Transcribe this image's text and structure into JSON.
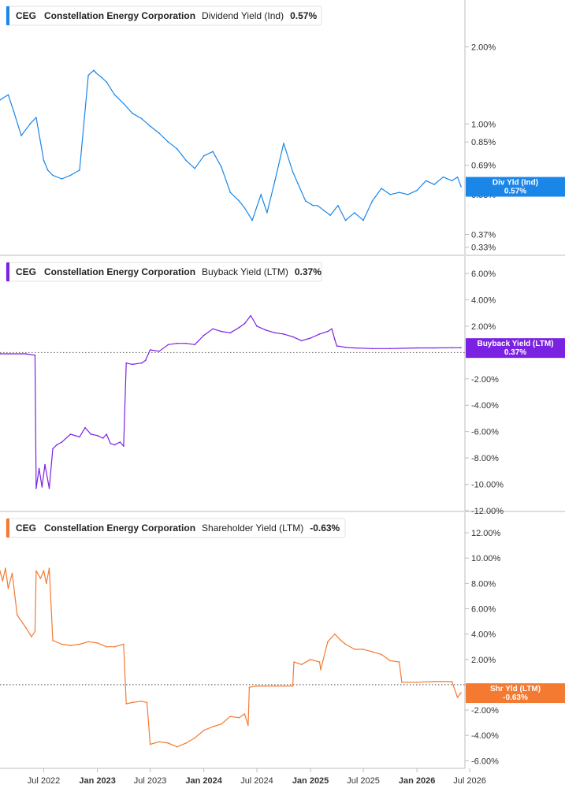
{
  "chart_data": [
    {
      "type": "line",
      "ticker": "CEG",
      "company": "Constellation Energy Corporation",
      "metric": "Dividend Yield (Ind)",
      "current": "0.57%",
      "axis_tag": "Div Yld (Ind)",
      "color": "#1a86e8",
      "scale": "log",
      "ylim": [
        0.32,
        2.8
      ],
      "yticks": [
        {
          "v": 2.0,
          "label": "2.00%"
        },
        {
          "v": 1.0,
          "label": "1.00%"
        },
        {
          "v": 0.85,
          "label": "0.85%"
        },
        {
          "v": 0.69,
          "label": "0.69%"
        },
        {
          "v": 0.53,
          "label": "0.53%"
        },
        {
          "v": 0.37,
          "label": "0.37%"
        },
        {
          "v": 0.33,
          "label": "0.33%"
        }
      ],
      "series": [
        {
          "x": [
            "2022-02-01",
            "2022-03-01",
            "2022-03-20",
            "2022-04-15",
            "2022-05-15",
            "2022-06-05",
            "2022-07-01",
            "2022-07-15",
            "2022-08-01",
            "2022-09-01",
            "2022-10-01",
            "2022-11-01",
            "2022-12-01",
            "2022-12-20",
            "2022-12-28",
            "2023-01-15",
            "2023-02-01",
            "2023-03-01",
            "2023-04-01",
            "2023-05-01",
            "2023-06-01",
            "2023-07-01",
            "2023-08-01",
            "2023-09-01",
            "2023-10-01",
            "2023-11-01",
            "2023-12-01",
            "2024-01-01",
            "2024-02-01",
            "2024-03-01",
            "2024-04-01",
            "2024-05-01",
            "2024-05-20",
            "2024-06-15",
            "2024-07-15",
            "2024-08-05",
            "2024-09-01",
            "2024-10-01",
            "2024-11-01",
            "2024-12-15",
            "2025-01-10",
            "2025-01-25",
            "2025-02-15",
            "2025-03-10",
            "2025-04-05",
            "2025-05-01",
            "2025-06-01",
            "2025-07-01",
            "2025-08-01",
            "2025-09-01",
            "2025-10-01",
            "2025-11-01",
            "2025-12-01",
            "2026-01-01",
            "2026-02-01",
            "2026-03-01",
            "2026-04-01",
            "2026-05-01",
            "2026-05-20",
            "2026-06-01"
          ],
          "values": [
            1.24,
            1.3,
            1.12,
            0.9,
            1.0,
            1.06,
            0.72,
            0.66,
            0.63,
            0.61,
            0.63,
            0.66,
            1.55,
            1.62,
            1.58,
            1.52,
            1.46,
            1.3,
            1.2,
            1.1,
            1.05,
            0.98,
            0.92,
            0.85,
            0.8,
            0.72,
            0.67,
            0.75,
            0.78,
            0.68,
            0.54,
            0.5,
            0.47,
            0.42,
            0.53,
            0.45,
            0.6,
            0.84,
            0.65,
            0.5,
            0.48,
            0.48,
            0.46,
            0.44,
            0.48,
            0.42,
            0.45,
            0.42,
            0.5,
            0.56,
            0.53,
            0.54,
            0.53,
            0.55,
            0.6,
            0.58,
            0.62,
            0.6,
            0.62,
            0.57
          ]
        }
      ]
    },
    {
      "type": "line",
      "ticker": "CEG",
      "company": "Constellation Energy Corporation",
      "metric": "Buyback Yield (LTM)",
      "current": "0.37%",
      "axis_tag": "Buyback Yield (LTM)",
      "color": "#7b22e2",
      "scale": "linear",
      "ylim": [
        -12.0,
        6.6
      ],
      "baseline": 0,
      "yticks": [
        {
          "v": 6,
          "label": "6.00%"
        },
        {
          "v": 4,
          "label": "4.00%"
        },
        {
          "v": 2,
          "label": "2.00%"
        },
        {
          "v": -2,
          "label": "-2.00%"
        },
        {
          "v": -4,
          "label": "-4.00%"
        },
        {
          "v": -6,
          "label": "-6.00%"
        },
        {
          "v": -8,
          "label": "-8.00%"
        },
        {
          "v": -10,
          "label": "-10.00%"
        },
        {
          "v": -12,
          "label": "-12.00%"
        }
      ],
      "series": [
        {
          "x": [
            "2022-02-01",
            "2022-05-01",
            "2022-06-01",
            "2022-06-05",
            "2022-06-15",
            "2022-06-25",
            "2022-07-05",
            "2022-07-20",
            "2022-08-01",
            "2022-08-15",
            "2022-09-01",
            "2022-10-01",
            "2022-11-01",
            "2022-11-20",
            "2022-12-10",
            "2023-01-01",
            "2023-01-20",
            "2023-02-01",
            "2023-02-15",
            "2023-03-01",
            "2023-03-20",
            "2023-04-01",
            "2023-04-10",
            "2023-05-01",
            "2023-06-01",
            "2023-06-15",
            "2023-07-01",
            "2023-08-01",
            "2023-09-01",
            "2023-10-01",
            "2023-11-01",
            "2023-12-01",
            "2024-01-01",
            "2024-02-01",
            "2024-03-01",
            "2024-04-01",
            "2024-05-01",
            "2024-05-20",
            "2024-06-10",
            "2024-07-01",
            "2024-08-01",
            "2024-09-01",
            "2024-10-01",
            "2024-11-01",
            "2024-12-01",
            "2025-01-01",
            "2025-02-01",
            "2025-03-01",
            "2025-03-15",
            "2025-03-25",
            "2025-04-01",
            "2025-05-01",
            "2025-06-01",
            "2025-08-01",
            "2025-10-01",
            "2026-01-01",
            "2026-03-01",
            "2026-05-01",
            "2026-06-01"
          ],
          "values": [
            -0.1,
            -0.1,
            -0.2,
            -10.3,
            -8.8,
            -10.2,
            -8.5,
            -10.3,
            -7.3,
            -7.0,
            -6.8,
            -6.2,
            -6.4,
            -5.7,
            -6.2,
            -6.3,
            -6.5,
            -6.2,
            -6.9,
            -7.0,
            -6.8,
            -7.1,
            -0.8,
            -0.9,
            -0.8,
            -0.6,
            0.2,
            0.1,
            0.6,
            0.7,
            0.7,
            0.6,
            1.3,
            1.8,
            1.6,
            1.5,
            1.9,
            2.2,
            2.8,
            2.0,
            1.7,
            1.5,
            1.4,
            1.2,
            0.9,
            1.1,
            1.4,
            1.6,
            1.8,
            1.0,
            0.5,
            0.4,
            0.35,
            0.3,
            0.3,
            0.35,
            0.35,
            0.37,
            0.37
          ]
        }
      ]
    },
    {
      "type": "line",
      "ticker": "CEG",
      "company": "Constellation Energy Corporation",
      "metric": "Shareholder Yield (LTM)",
      "current": "-0.63%",
      "axis_tag": "Shr Yld (LTM)",
      "color": "#f47a32",
      "scale": "linear",
      "ylim": [
        -6.6,
        13.0
      ],
      "baseline": 0,
      "yticks": [
        {
          "v": 12,
          "label": "12.00%"
        },
        {
          "v": 10,
          "label": "10.00%"
        },
        {
          "v": 8,
          "label": "8.00%"
        },
        {
          "v": 6,
          "label": "6.00%"
        },
        {
          "v": 4,
          "label": "4.00%"
        },
        {
          "v": 2,
          "label": "2.00%"
        },
        {
          "v": -2,
          "label": "-2.00%"
        },
        {
          "v": -4,
          "label": "-4.00%"
        },
        {
          "v": -6,
          "label": "-6.00%"
        }
      ],
      "series": [
        {
          "x": [
            "2022-02-01",
            "2022-02-10",
            "2022-02-20",
            "2022-03-01",
            "2022-03-15",
            "2022-04-01",
            "2022-05-01",
            "2022-05-20",
            "2022-06-01",
            "2022-06-05",
            "2022-06-20",
            "2022-07-01",
            "2022-07-10",
            "2022-07-20",
            "2022-08-01",
            "2022-09-01",
            "2022-10-01",
            "2022-11-01",
            "2022-12-01",
            "2023-01-01",
            "2023-02-01",
            "2023-03-01",
            "2023-04-01",
            "2023-04-10",
            "2023-05-01",
            "2023-06-01",
            "2023-06-20",
            "2023-07-01",
            "2023-08-01",
            "2023-09-01",
            "2023-10-01",
            "2023-11-01",
            "2023-12-01",
            "2024-01-01",
            "2024-02-01",
            "2024-03-01",
            "2024-04-01",
            "2024-05-01",
            "2024-05-20",
            "2024-06-01",
            "2024-06-05",
            "2024-07-01",
            "2024-08-01",
            "2024-09-01",
            "2024-10-01",
            "2024-11-01",
            "2024-11-05",
            "2024-12-01",
            "2025-01-01",
            "2025-02-01",
            "2025-02-05",
            "2025-03-01",
            "2025-03-25",
            "2025-04-15",
            "2025-05-01",
            "2025-06-01",
            "2025-07-01",
            "2025-08-01",
            "2025-09-01",
            "2025-10-01",
            "2025-11-01",
            "2025-11-10",
            "2025-12-01",
            "2026-01-01",
            "2026-03-01",
            "2026-05-01",
            "2026-05-20",
            "2026-06-01"
          ],
          "values": [
            9.0,
            8.2,
            9.2,
            7.6,
            8.8,
            5.5,
            4.5,
            3.8,
            4.2,
            9.0,
            8.4,
            9.0,
            8.0,
            9.2,
            3.5,
            3.2,
            3.1,
            3.2,
            3.4,
            3.3,
            3.0,
            3.0,
            3.2,
            -1.5,
            -1.4,
            -1.3,
            -1.4,
            -4.7,
            -4.5,
            -4.6,
            -4.9,
            -4.6,
            -4.2,
            -3.6,
            -3.3,
            -3.1,
            -2.5,
            -2.6,
            -2.3,
            -3.2,
            -0.2,
            -0.1,
            -0.1,
            -0.1,
            -0.1,
            -0.1,
            1.8,
            1.6,
            2.0,
            1.8,
            1.2,
            3.4,
            4.0,
            3.5,
            3.2,
            2.8,
            2.8,
            2.6,
            2.4,
            1.9,
            1.8,
            0.2,
            0.2,
            0.2,
            0.25,
            0.25,
            -1.0,
            -0.63
          ]
        }
      ]
    }
  ],
  "x_axis": {
    "labels": [
      {
        "date": "2022-07-01",
        "label": "Jul 2022",
        "bold": false
      },
      {
        "date": "2023-01-01",
        "label": "Jan 2023",
        "bold": true
      },
      {
        "date": "2023-07-01",
        "label": "Jul 2023",
        "bold": false
      },
      {
        "date": "2024-01-01",
        "label": "Jan 2024",
        "bold": true
      },
      {
        "date": "2024-07-01",
        "label": "Jul 2024",
        "bold": false
      },
      {
        "date": "2025-01-01",
        "label": "Jan 2025",
        "bold": true
      },
      {
        "date": "2025-07-01",
        "label": "Jul 2025",
        "bold": false
      },
      {
        "date": "2026-01-01",
        "label": "Jan 2026",
        "bold": true
      },
      {
        "date": "2026-07-01",
        "label": "Jul 2026",
        "bold": false
      }
    ]
  }
}
